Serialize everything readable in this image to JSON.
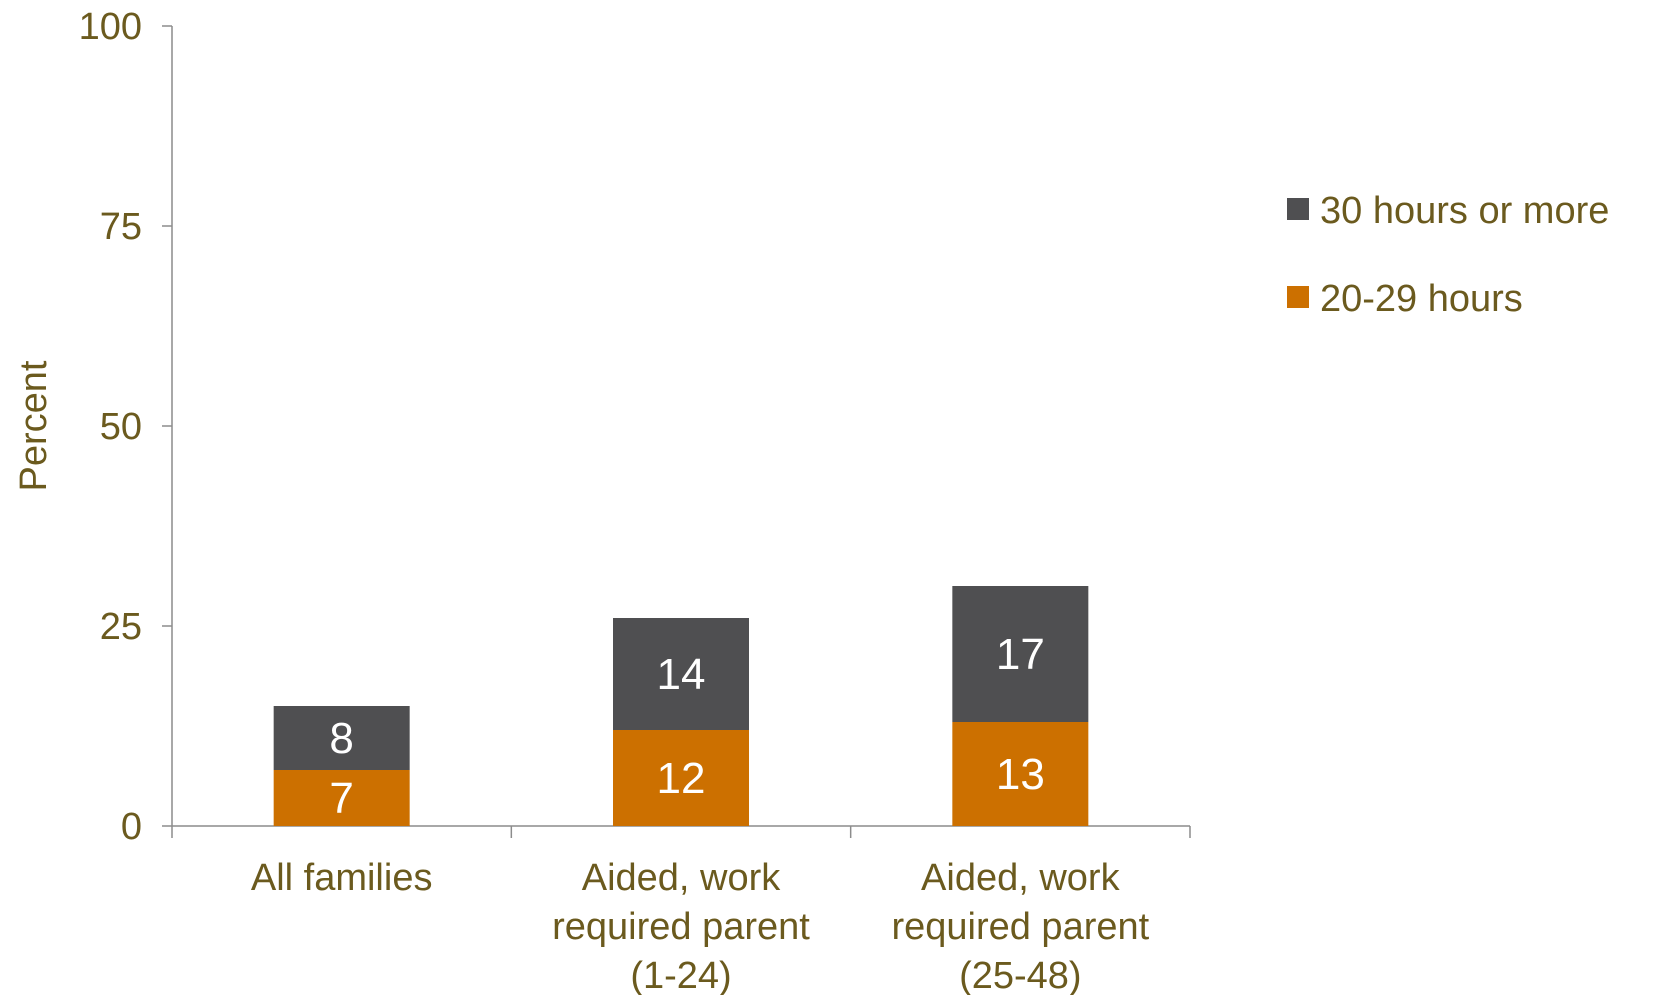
{
  "chart_data": {
    "type": "bar",
    "stacked": true,
    "title": "",
    "xlabel": "",
    "ylabel": "Percent",
    "ylim": [
      0,
      100
    ],
    "yticks": [
      0,
      25,
      50,
      75,
      100
    ],
    "grid": false,
    "legend_position": "right",
    "categories": [
      [
        "All families"
      ],
      [
        "Aided, work",
        "required parent",
        "(1-24)"
      ],
      [
        "Aided, work",
        "required parent",
        "(25-48)"
      ]
    ],
    "series": [
      {
        "name": "20-29 hours",
        "values": [
          7,
          12,
          13
        ],
        "color": "#cc7000"
      },
      {
        "name": "30 hours or more",
        "values": [
          8,
          14,
          17
        ],
        "color": "#4f4f51"
      }
    ],
    "legend_order": [
      1,
      0
    ],
    "text_color": "#6b5a1e",
    "axis_color": "#8c8c8c"
  }
}
